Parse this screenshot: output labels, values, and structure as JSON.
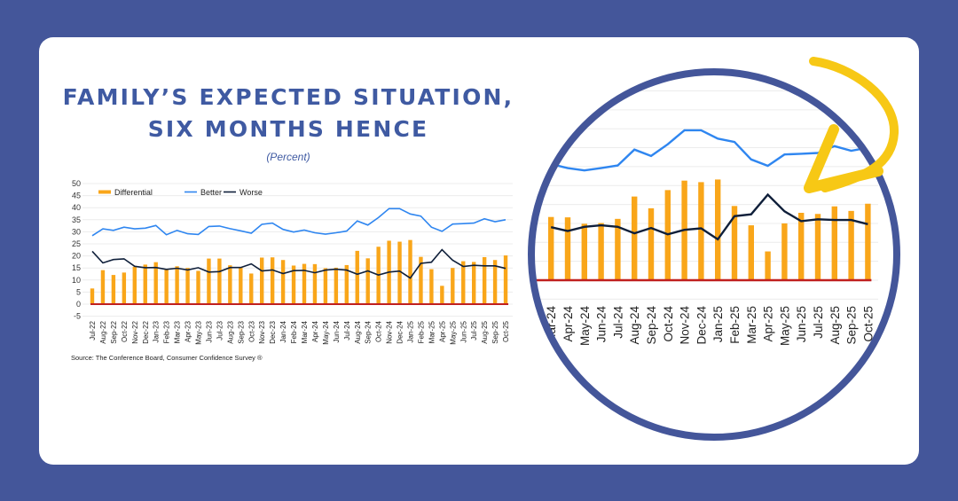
{
  "header": {
    "title_line1": "FAMILY’S EXPECTED SITUATION,",
    "title_line2": "SIX MONTHS HENCE",
    "subtitle": "(Percent)"
  },
  "source": "Source: The Conference Board, Consumer Confidence Survey ®",
  "colors": {
    "background": "#44569a",
    "title": "#3f5aa2",
    "differential": "#f9a61a",
    "better": "#2f86f0",
    "worse": "#0f1f3a",
    "zero_line": "#c0201f",
    "ring": "#44569a",
    "arrow": "#f7c815"
  },
  "chart_data": {
    "type": "bar",
    "title": "Family's Expected Situation, Six Months Hence",
    "subtitle": "(Percent)",
    "xlabel": "",
    "ylabel": "",
    "ylim": [
      -5,
      50
    ],
    "yticks": [
      50,
      45,
      40,
      35,
      30,
      25,
      20,
      15,
      10,
      5,
      0,
      -5
    ],
    "grid": true,
    "legend_position": "top-left",
    "categories": [
      "Jul-22",
      "Aug-22",
      "Sep-22",
      "Oct-22",
      "Nov-22",
      "Dec-22",
      "Jan-23",
      "Feb-23",
      "Mar-23",
      "Apr-23",
      "May-23",
      "Jun-23",
      "Jul-23",
      "Aug-23",
      "Sep-23",
      "Oct-23",
      "Nov-23",
      "Dec-23",
      "Jan-24",
      "Feb-24",
      "Mar-24",
      "Apr-24",
      "May-24",
      "Jun-24",
      "Jul-24",
      "Aug-24",
      "Sep-24",
      "Oct-24",
      "Nov-24",
      "Dec-24",
      "Jan-25",
      "Feb-25",
      "Mar-25",
      "Apr-25",
      "May-25",
      "Jun-25",
      "Jul-25",
      "Aug-25",
      "Sep-25",
      "Oct-25"
    ],
    "series": [
      {
        "name": "Differential",
        "type": "bar",
        "values": [
          6.5,
          14.1,
          12.1,
          13.1,
          15.5,
          16.4,
          17.4,
          14.4,
          15.7,
          15.0,
          13.8,
          18.9,
          18.9,
          16.1,
          15.2,
          12.7,
          19.3,
          19.4,
          18.3,
          16.0,
          16.7,
          16.6,
          14.9,
          15.1,
          16.2,
          22.1,
          19.0,
          23.8,
          26.3,
          25.9,
          26.6,
          19.6,
          14.5,
          7.6,
          15.0,
          17.8,
          17.5,
          19.5,
          18.3,
          20.2
        ]
      },
      {
        "name": "Better",
        "type": "line",
        "values": [
          28.4,
          31.2,
          30.6,
          31.9,
          31.2,
          31.5,
          32.6,
          28.8,
          30.6,
          29.2,
          28.9,
          32.2,
          32.4,
          31.3,
          30.4,
          29.4,
          33.1,
          33.6,
          31.0,
          29.9,
          30.7,
          29.6,
          29.0,
          29.6,
          30.3,
          34.5,
          32.8,
          35.9,
          39.6,
          39.6,
          37.4,
          36.5,
          31.9,
          30.2,
          33.2,
          33.4,
          33.6,
          35.4,
          34.2,
          35.0
        ]
      },
      {
        "name": "Worse",
        "type": "line",
        "values": [
          21.9,
          17.1,
          18.5,
          18.8,
          15.7,
          15.1,
          15.2,
          14.4,
          14.9,
          14.2,
          15.1,
          13.3,
          13.5,
          15.2,
          15.2,
          16.7,
          13.8,
          14.2,
          12.7,
          13.9,
          14.0,
          13.0,
          14.1,
          14.5,
          14.1,
          12.4,
          13.8,
          12.1,
          13.3,
          13.7,
          10.8,
          16.9,
          17.4,
          22.6,
          18.2,
          15.6,
          16.1,
          15.9,
          15.9,
          14.8
        ]
      }
    ],
    "legend": [
      "Differential",
      "Better",
      "Worse"
    ],
    "source": "Source: The Conference Board, Consumer Confidence Survey ®",
    "zoom_inset": {
      "shape": "circle",
      "from_category": "Mar-24",
      "to_category": "Oct-25",
      "annotation": "hand-drawn arrow pointing to recent months"
    }
  }
}
